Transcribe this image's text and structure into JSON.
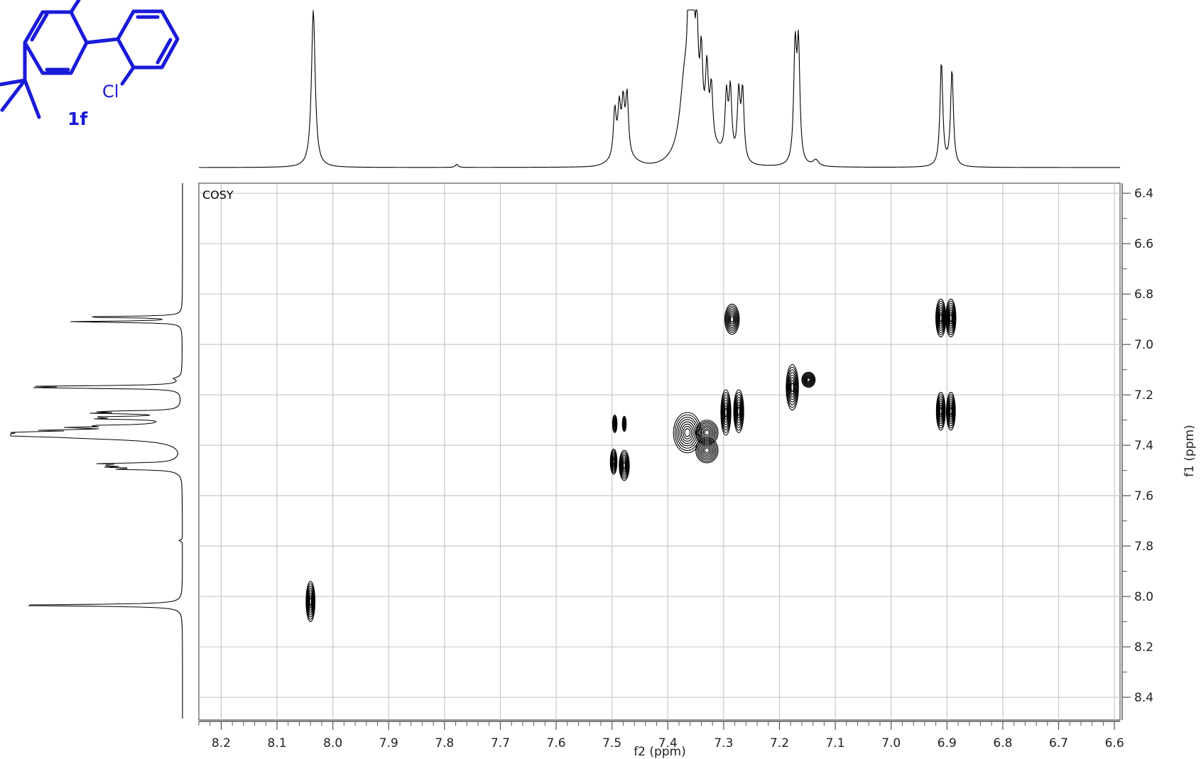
{
  "chart_data": {
    "type": "contour",
    "panel_label": "COSY",
    "xlabel": "f2 (ppm)",
    "ylabel": "f1 (ppm)",
    "xlim": [
      8.24,
      6.59
    ],
    "ylim": [
      6.36,
      8.49
    ],
    "x_reversed": true,
    "y_reversed": true,
    "grid": true,
    "x_ticks": [
      8.2,
      8.1,
      8.0,
      7.9,
      7.8,
      7.7,
      7.6,
      7.5,
      7.4,
      7.3,
      7.2,
      7.1,
      7.0,
      6.9,
      6.8,
      6.7,
      6.6
    ],
    "y_ticks": [
      6.4,
      6.6,
      6.8,
      7.0,
      7.2,
      7.4,
      7.6,
      7.8,
      8.0,
      8.2,
      8.4
    ],
    "projection_peaks": [
      {
        "ppm": 8.035,
        "height": 1.0,
        "width": 0.004
      },
      {
        "ppm": 7.778,
        "height": 0.02,
        "width": 0.003
      },
      {
        "ppm": 7.495,
        "height": 0.3,
        "width": 0.003
      },
      {
        "ppm": 7.487,
        "height": 0.3,
        "width": 0.003
      },
      {
        "ppm": 7.48,
        "height": 0.32,
        "width": 0.003
      },
      {
        "ppm": 7.473,
        "height": 0.38,
        "width": 0.003
      },
      {
        "ppm": 7.37,
        "height": 0.45,
        "width": 0.01
      },
      {
        "ppm": 7.362,
        "height": 0.82,
        "width": 0.003
      },
      {
        "ppm": 7.355,
        "height": 0.88,
        "width": 0.003
      },
      {
        "ppm": 7.348,
        "height": 0.62,
        "width": 0.003
      },
      {
        "ppm": 7.34,
        "height": 0.5,
        "width": 0.003
      },
      {
        "ppm": 7.33,
        "height": 0.45,
        "width": 0.003
      },
      {
        "ppm": 7.322,
        "height": 0.35,
        "width": 0.003
      },
      {
        "ppm": 7.295,
        "height": 0.38,
        "width": 0.003
      },
      {
        "ppm": 7.288,
        "height": 0.42,
        "width": 0.003
      },
      {
        "ppm": 7.273,
        "height": 0.42,
        "width": 0.003
      },
      {
        "ppm": 7.266,
        "height": 0.44,
        "width": 0.003
      },
      {
        "ppm": 7.172,
        "height": 0.72,
        "width": 0.003
      },
      {
        "ppm": 7.166,
        "height": 0.72,
        "width": 0.003
      },
      {
        "ppm": 7.135,
        "height": 0.04,
        "width": 0.006
      },
      {
        "ppm": 6.91,
        "height": 0.66,
        "width": 0.003
      },
      {
        "ppm": 6.891,
        "height": 0.61,
        "width": 0.003
      }
    ],
    "cross_peaks": [
      {
        "f2": 8.04,
        "f1": 8.02,
        "rx": 0.008,
        "ry": 0.08
      },
      {
        "f2": 7.285,
        "f1": 6.9,
        "rx": 0.013,
        "ry": 0.06
      },
      {
        "f2": 6.911,
        "f1": 6.895,
        "rx": 0.009,
        "ry": 0.075
      },
      {
        "f2": 6.893,
        "f1": 6.895,
        "rx": 0.009,
        "ry": 0.075
      },
      {
        "f2": 7.177,
        "f1": 7.17,
        "rx": 0.011,
        "ry": 0.09
      },
      {
        "f2": 7.148,
        "f1": 7.14,
        "rx": 0.012,
        "ry": 0.03
      },
      {
        "f2": 6.911,
        "f1": 7.265,
        "rx": 0.008,
        "ry": 0.075
      },
      {
        "f2": 6.893,
        "f1": 7.265,
        "rx": 0.008,
        "ry": 0.075
      },
      {
        "f2": 7.296,
        "f1": 7.27,
        "rx": 0.009,
        "ry": 0.09
      },
      {
        "f2": 7.273,
        "f1": 7.265,
        "rx": 0.009,
        "ry": 0.085
      },
      {
        "f2": 7.365,
        "f1": 7.35,
        "rx": 0.025,
        "ry": 0.08
      },
      {
        "f2": 7.33,
        "f1": 7.35,
        "rx": 0.02,
        "ry": 0.05
      },
      {
        "f2": 7.33,
        "f1": 7.42,
        "rx": 0.02,
        "ry": 0.05
      },
      {
        "f2": 7.495,
        "f1": 7.315,
        "rx": 0.004,
        "ry": 0.035
      },
      {
        "f2": 7.478,
        "f1": 7.315,
        "rx": 0.0035,
        "ry": 0.03
      },
      {
        "f2": 7.497,
        "f1": 7.465,
        "rx": 0.006,
        "ry": 0.05
      },
      {
        "f2": 7.478,
        "f1": 7.48,
        "rx": 0.009,
        "ry": 0.06
      }
    ]
  },
  "molecule": {
    "cl_label": "Cl",
    "compound_label": "1f",
    "color": "#1a1ad9"
  },
  "colors": {
    "axis": "#555555",
    "grid": "#c8c8c8",
    "contour": "#000000",
    "spectrum": "#000000"
  }
}
